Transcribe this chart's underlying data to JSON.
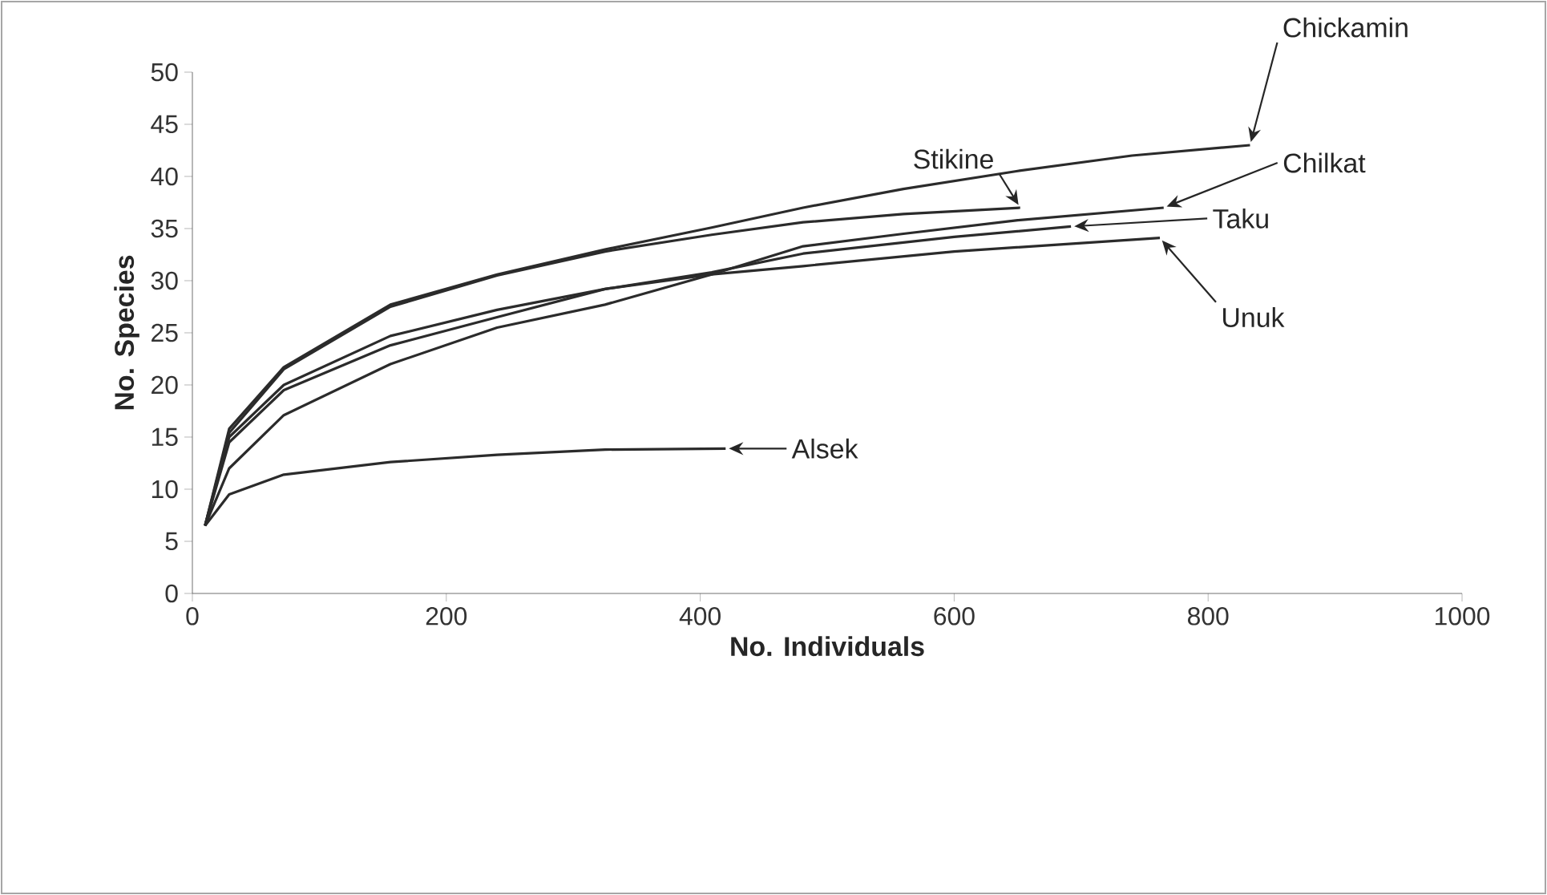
{
  "chart_data": {
    "type": "line",
    "xlabel": "No. Individuals",
    "ylabel": "No. Species",
    "xlim": [
      0,
      1000
    ],
    "ylim": [
      0,
      50
    ],
    "xticks": [
      0,
      200,
      400,
      600,
      800,
      1000
    ],
    "yticks": [
      0,
      5,
      10,
      15,
      20,
      25,
      30,
      35,
      40,
      45,
      50
    ],
    "grid": false,
    "legend": "right",
    "marker": "none",
    "line_style": "solid",
    "series": [
      {
        "name": "Chickamin",
        "color": "#2b2b2b",
        "x": [
          10,
          29,
          72,
          156,
          240,
          325,
          409,
          481,
          560,
          649,
          740,
          833
        ],
        "values": [
          6.5,
          15.8,
          21.7,
          27.7,
          30.6,
          33.0,
          35.1,
          37.0,
          38.8,
          40.5,
          42.0,
          43.0
        ]
      },
      {
        "name": "Stikine",
        "color": "#2b2b2b",
        "x": [
          10,
          29,
          72,
          156,
          240,
          325,
          409,
          481,
          560,
          652
        ],
        "values": [
          6.5,
          15.4,
          21.5,
          27.5,
          30.5,
          32.8,
          34.4,
          35.6,
          36.4,
          37.0
        ]
      },
      {
        "name": "Chilkat",
        "color": "#2b2b2b",
        "x": [
          10,
          29,
          72,
          156,
          240,
          325,
          409,
          481,
          560,
          650,
          765
        ],
        "values": [
          6.5,
          12.0,
          17.1,
          22.0,
          25.5,
          27.7,
          30.6,
          33.3,
          34.5,
          35.8,
          37.0
        ]
      },
      {
        "name": "Taku",
        "color": "#2b2b2b",
        "x": [
          10,
          29,
          72,
          156,
          240,
          325,
          409,
          481,
          600,
          692
        ],
        "values": [
          6.5,
          14.5,
          19.5,
          23.8,
          26.5,
          29.2,
          30.8,
          32.6,
          34.2,
          35.2
        ]
      },
      {
        "name": "Unuk",
        "color": "#2b2b2b",
        "x": [
          10,
          29,
          72,
          156,
          240,
          325,
          409,
          481,
          600,
          762
        ],
        "values": [
          6.5,
          15.0,
          20.0,
          24.7,
          27.2,
          29.2,
          30.6,
          31.4,
          32.8,
          34.1
        ]
      },
      {
        "name": "Alsek",
        "color": "#2b2b2b",
        "x": [
          10,
          29,
          72,
          156,
          240,
          325,
          420
        ],
        "values": [
          6.5,
          9.5,
          11.4,
          12.6,
          13.3,
          13.8,
          13.9
        ]
      }
    ]
  }
}
